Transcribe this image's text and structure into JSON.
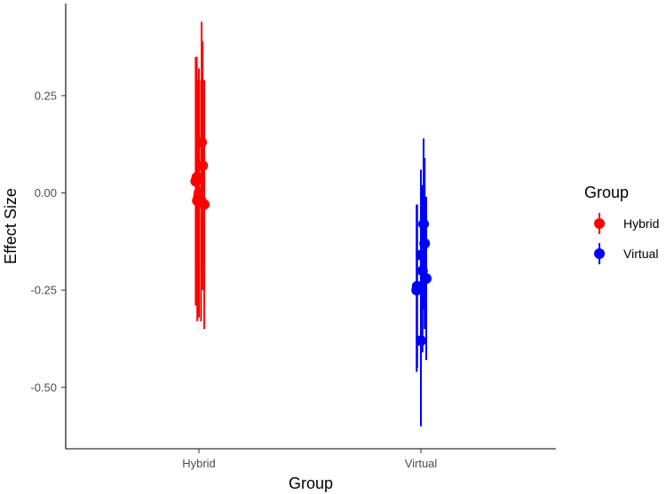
{
  "chart_data": {
    "type": "scatter",
    "xlabel": "Group",
    "ylabel": "Effect Size",
    "categories": [
      "Hybrid",
      "Virtual"
    ],
    "ylim": [
      -0.6,
      0.45
    ],
    "yticks": [
      0.25,
      0.0,
      -0.25,
      -0.5
    ],
    "ytick_labels": [
      "0.25",
      "0.00",
      "-0.25",
      "-0.50"
    ],
    "grid": false,
    "legend": {
      "title": "Group",
      "placement": "right",
      "entries": [
        "Hybrid",
        "Virtual"
      ]
    },
    "series": [
      {
        "name": "Hybrid",
        "color": "#ff0000",
        "points": [
          {
            "x": "Hybrid",
            "offset": -0.06,
            "y": 0.03,
            "low": -0.29,
            "high": 0.35
          },
          {
            "x": "Hybrid",
            "offset": -0.04,
            "y": 0.04,
            "low": -0.27,
            "high": 0.35
          },
          {
            "x": "Hybrid",
            "offset": -0.03,
            "y": -0.02,
            "low": -0.33,
            "high": 0.29
          },
          {
            "x": "Hybrid",
            "offset": -0.01,
            "y": -0.01,
            "low": -0.31,
            "high": 0.29
          },
          {
            "x": "Hybrid",
            "offset": 0.0,
            "y": 0.0,
            "low": -0.32,
            "high": 0.32
          },
          {
            "x": "Hybrid",
            "offset": 0.04,
            "y": -0.02,
            "low": -0.33,
            "high": 0.29
          },
          {
            "x": "Hybrid",
            "offset": 0.05,
            "y": 0.13,
            "low": -0.19,
            "high": 0.44
          },
          {
            "x": "Hybrid",
            "offset": 0.07,
            "y": 0.07,
            "low": -0.25,
            "high": 0.39
          },
          {
            "x": "Hybrid",
            "offset": 0.1,
            "y": -0.03,
            "low": -0.35,
            "high": 0.29
          }
        ]
      },
      {
        "name": "Virtual",
        "color": "#0000ff",
        "points": [
          {
            "x": "Virtual",
            "offset": -0.08,
            "y": -0.25,
            "low": -0.46,
            "high": -0.03
          },
          {
            "x": "Virtual",
            "offset": -0.07,
            "y": -0.24,
            "low": -0.45,
            "high": -0.03
          },
          {
            "x": "Virtual",
            "offset": 0.0,
            "y": -0.38,
            "low": -0.6,
            "high": -0.16
          },
          {
            "x": "Virtual",
            "offset": 0.0,
            "y": -0.16,
            "low": -0.38,
            "high": 0.06
          },
          {
            "x": "Virtual",
            "offset": 0.03,
            "y": -0.2,
            "low": -0.41,
            "high": 0.02
          },
          {
            "x": "Virtual",
            "offset": 0.05,
            "y": -0.08,
            "low": -0.3,
            "high": 0.14
          },
          {
            "x": "Virtual",
            "offset": 0.07,
            "y": -0.13,
            "low": -0.35,
            "high": 0.09
          },
          {
            "x": "Virtual",
            "offset": 0.1,
            "y": -0.22,
            "low": -0.43,
            "high": -0.01
          }
        ]
      }
    ]
  }
}
